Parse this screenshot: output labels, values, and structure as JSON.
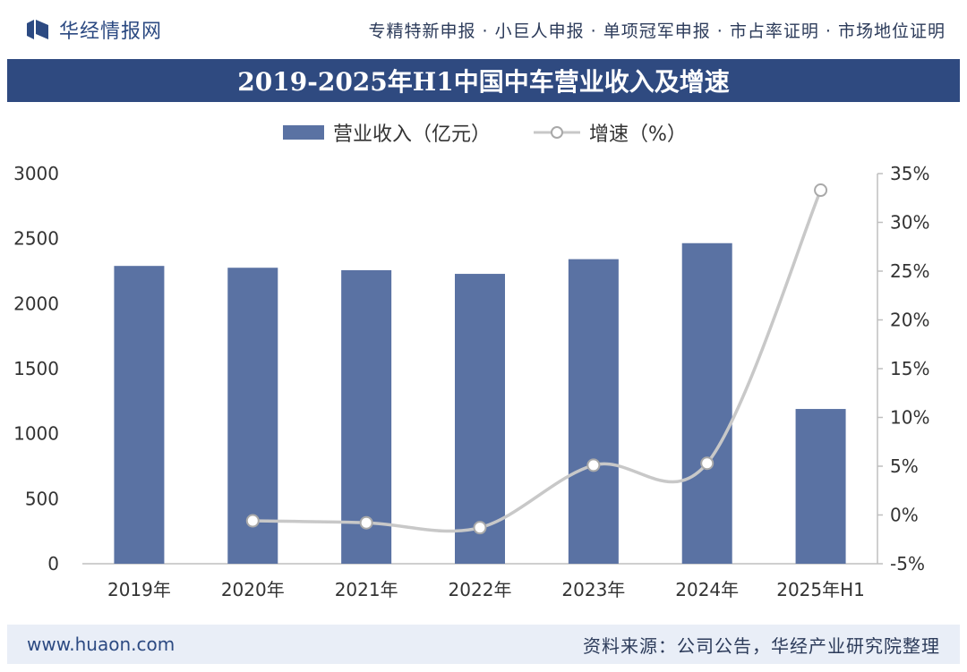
{
  "header": {
    "brand": "华经情报网",
    "services": "专精特新申报 · 小巨人申报 · 单项冠军申报 · 市占率证明 · 市场地位证明"
  },
  "footer": {
    "url": "www.huaon.com",
    "source": "资料来源：公司公告，华经产业研究院整理"
  },
  "colors": {
    "bar": "#5a72a3",
    "line": "#c8c8c8",
    "title_bg": "#2f4a80"
  },
  "chart_data": {
    "type": "bar",
    "title": "2019-2025年H1中国中车营业收入及增速",
    "categories": [
      "2019年",
      "2020年",
      "2021年",
      "2022年",
      "2023年",
      "2024年",
      "2025年H1"
    ],
    "series": [
      {
        "name": "营业收入（亿元）",
        "type": "bar",
        "axis": "left",
        "values": [
          2290,
          2276,
          2257,
          2229,
          2342,
          2465,
          1190
        ]
      },
      {
        "name": "增速（%）",
        "type": "line",
        "axis": "right",
        "values": [
          null,
          -0.6,
          -0.8,
          -1.3,
          5.1,
          5.3,
          33.3
        ]
      }
    ],
    "y_left": {
      "min": 0,
      "max": 3000,
      "ticks": [
        "0",
        "500",
        "1000",
        "1500",
        "2000",
        "2500",
        "3000"
      ]
    },
    "y_right": {
      "min": -5,
      "max": 35,
      "ticks": [
        "-5%",
        "0%",
        "5%",
        "10%",
        "15%",
        "20%",
        "25%",
        "30%",
        "35%"
      ]
    },
    "legend_position": "top",
    "grid": false
  }
}
